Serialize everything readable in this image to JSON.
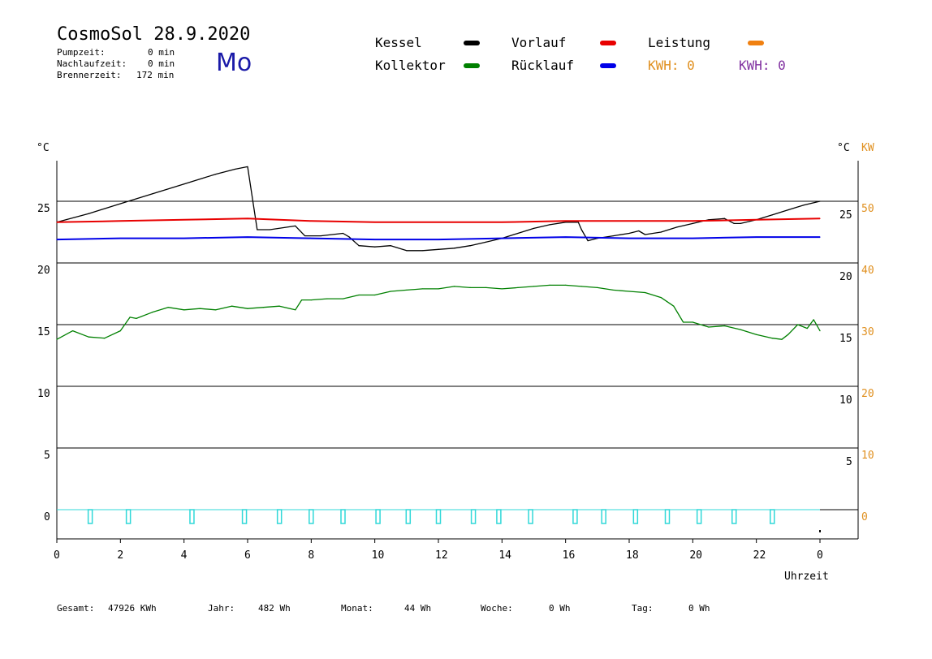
{
  "header": {
    "title": "CosmoSol 28.9.2020",
    "day": "Mo",
    "stats": [
      {
        "label": "Pumpzeit:",
        "value": "0 min"
      },
      {
        "label": "Nachlaufzeit:",
        "value": "0 min"
      },
      {
        "label": "Brennerzeit:",
        "value": "172 min"
      }
    ]
  },
  "legend": {
    "items": [
      {
        "label": "Kessel",
        "color": "#000000"
      },
      {
        "label": "Vorlauf",
        "color": "#e80000"
      },
      {
        "label": "Leistung",
        "color": "#f08010"
      },
      {
        "label": "Kollektor",
        "color": "#008000"
      },
      {
        "label": "Rücklauf",
        "color": "#0000e8"
      }
    ],
    "kwh_orange": "KWH: 0",
    "kwh_purple": "KWH: 0",
    "kwh_orange_color": "#e09020",
    "kwh_purple_color": "#8030a0"
  },
  "footer": [
    {
      "label": "Gesamt:",
      "value": "47926 KWh"
    },
    {
      "label": "Jahr:",
      "value": "482 Wh"
    },
    {
      "label": "Monat:",
      "value": "44 Wh"
    },
    {
      "label": "Woche:",
      "value": "0 Wh"
    },
    {
      "label": "Tag:",
      "value": "0 Wh"
    }
  ],
  "chart_data": {
    "type": "line",
    "xlabel": "Uhrzeit",
    "ylabel_left": "°C",
    "ylabel_right": "°C",
    "ylabel_right2": "KW",
    "x_ticks": [
      "0",
      "2",
      "4",
      "6",
      "8",
      "10",
      "12",
      "14",
      "16",
      "18",
      "20",
      "22",
      "0"
    ],
    "y_left_ticks": [
      0,
      5,
      10,
      15,
      20,
      25
    ],
    "y_right_ticks": [
      5,
      10,
      15,
      20,
      25
    ],
    "y_kw_ticks": [
      0,
      10,
      20,
      30,
      40,
      50
    ],
    "xlim": [
      0,
      24
    ],
    "ylim": [
      -2.3,
      28.3
    ],
    "grid": true,
    "series": [
      {
        "name": "Kessel",
        "color": "#000000",
        "x": [
          0,
          1,
          2,
          3,
          4,
          5,
          5.6,
          6.0,
          6.3,
          6.7,
          7.5,
          7.8,
          8.3,
          9.0,
          9.2,
          9.5,
          10.0,
          10.5,
          11.0,
          11.5,
          12.0,
          12.5,
          13.0,
          13.5,
          14.0,
          14.5,
          15.0,
          15.5,
          16.0,
          16.4,
          16.5,
          16.7,
          17.0,
          17.5,
          18.0,
          18.3,
          18.5,
          19.0,
          19.5,
          20.0,
          20.5,
          21.0,
          21.3,
          21.5,
          22.0,
          22.5,
          23.0,
          23.5,
          24.0
        ],
        "y": [
          23.3,
          24.0,
          24.8,
          25.6,
          26.4,
          27.2,
          27.6,
          27.8,
          22.7,
          22.7,
          23.0,
          22.2,
          22.2,
          22.4,
          22.1,
          21.4,
          21.3,
          21.4,
          21.0,
          21.0,
          21.1,
          21.2,
          21.4,
          21.7,
          22.0,
          22.4,
          22.8,
          23.1,
          23.3,
          23.3,
          22.7,
          21.8,
          22.0,
          22.2,
          22.4,
          22.6,
          22.3,
          22.5,
          22.9,
          23.2,
          23.5,
          23.6,
          23.2,
          23.2,
          23.5,
          23.9,
          24.3,
          24.7,
          25.0
        ]
      },
      {
        "name": "Vorlauf",
        "color": "#e80000",
        "x": [
          0,
          2,
          4,
          6,
          8,
          10,
          12,
          14,
          16,
          18,
          20,
          22,
          24
        ],
        "y": [
          23.3,
          23.4,
          23.5,
          23.6,
          23.4,
          23.3,
          23.3,
          23.3,
          23.4,
          23.4,
          23.4,
          23.5,
          23.6
        ]
      },
      {
        "name": "Rücklauf",
        "color": "#0000e8",
        "x": [
          0,
          2,
          4,
          6,
          8,
          10,
          12,
          14,
          16,
          18,
          20,
          22,
          24
        ],
        "y": [
          21.9,
          22.0,
          22.0,
          22.1,
          22.0,
          21.9,
          21.9,
          22.0,
          22.1,
          22.0,
          22.0,
          22.1,
          22.1
        ]
      },
      {
        "name": "Kollektor",
        "color": "#008000",
        "x": [
          0,
          0.5,
          1,
          1.5,
          2,
          2.3,
          2.5,
          3,
          3.5,
          4,
          4.5,
          5,
          5.5,
          6,
          6.5,
          7,
          7.5,
          7.7,
          8,
          8.5,
          9,
          9.5,
          10,
          10.5,
          11,
          11.5,
          12,
          12.5,
          13,
          13.5,
          14,
          14.5,
          15,
          15.5,
          16,
          16.5,
          17,
          17.5,
          18,
          18.5,
          19,
          19.4,
          19.7,
          20,
          20.5,
          21,
          21.5,
          22,
          22.5,
          22.8,
          23,
          23.3,
          23.6,
          23.8,
          24
        ],
        "y": [
          13.8,
          14.5,
          14.0,
          13.9,
          14.5,
          15.6,
          15.5,
          16.0,
          16.4,
          16.2,
          16.3,
          16.2,
          16.5,
          16.3,
          16.4,
          16.5,
          16.2,
          17.0,
          17.0,
          17.1,
          17.1,
          17.4,
          17.4,
          17.7,
          17.8,
          17.9,
          17.9,
          18.1,
          18.0,
          18.0,
          17.9,
          18.0,
          18.1,
          18.2,
          18.2,
          18.1,
          18.0,
          17.8,
          17.7,
          17.6,
          17.2,
          16.5,
          15.2,
          15.2,
          14.8,
          14.9,
          14.6,
          14.2,
          13.9,
          13.8,
          14.2,
          15.0,
          14.7,
          15.4,
          14.5
        ]
      }
    ],
    "burner_pulses_x": [
      1.05,
      2.25,
      4.25,
      5.9,
      7.0,
      8.0,
      9.0,
      10.1,
      11.05,
      12.0,
      13.1,
      13.9,
      14.9,
      16.3,
      17.2,
      18.2,
      19.2,
      20.2,
      21.3,
      22.5
    ]
  }
}
